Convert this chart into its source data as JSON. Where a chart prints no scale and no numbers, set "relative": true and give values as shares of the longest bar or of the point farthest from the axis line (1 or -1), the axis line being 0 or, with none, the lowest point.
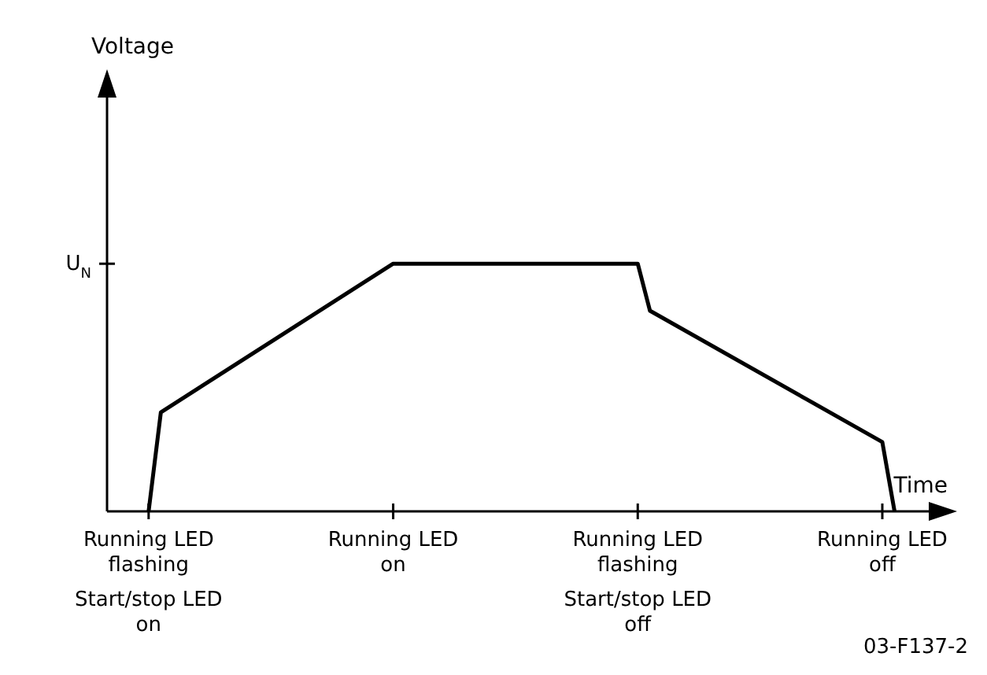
{
  "chart_data": {
    "type": "line",
    "relative": true,
    "xlabel": "Time",
    "categories": [
      "Running LED\nflashing",
      null,
      null,
      null,
      null,
      null,
      null,
      null,
      null,
      null,
      null,
      null,
      null,
      null,
      null,
      null,
      null,
      null,
      null,
      null,
      "Running LED\non",
      null,
      null,
      null,
      null,
      null,
      null,
      null,
      null,
      null,
      null,
      null,
      null,
      null,
      null,
      null,
      null,
      null,
      null,
      null,
      "Running LED\nflashing",
      null,
      null,
      null,
      null,
      null,
      null,
      null,
      null,
      null,
      null,
      null,
      null,
      null,
      null,
      null,
      null,
      null,
      null,
      null,
      "Running LED\noff",
      null
    ],
    "series": [
      {
        "color": "#000000",
        "values": [
          0,
          0.4,
          null,
          null,
          null,
          null,
          null,
          null,
          null,
          null,
          null,
          null,
          null,
          null,
          null,
          null,
          null,
          null,
          null,
          null,
          1,
          null,
          null,
          null,
          null,
          null,
          null,
          null,
          null,
          null,
          null,
          null,
          null,
          null,
          null,
          null,
          null,
          null,
          null,
          null,
          1,
          0.81,
          null,
          null,
          null,
          null,
          null,
          null,
          null,
          null,
          null,
          null,
          null,
          null,
          null,
          null,
          null,
          null,
          null,
          null,
          0.28,
          0
        ]
      }
    ],
    "annotations": [
      "Voltage",
      "U$_{N}$",
      "Start/stop LED\non",
      "Start/stop LED\noff",
      "03-F137-2"
    ]
  }
}
